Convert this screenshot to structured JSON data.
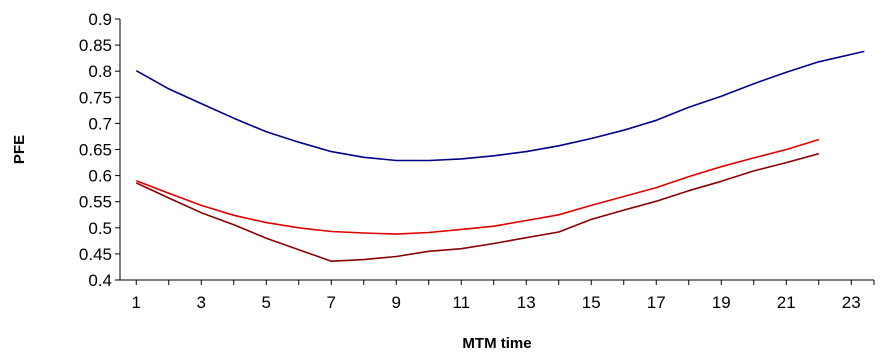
{
  "chart_data": {
    "type": "line",
    "title": "",
    "xlabel": "MTM time",
    "ylabel": "PFE",
    "x_ticks": [
      "1",
      "3",
      "5",
      "7",
      "9",
      "11",
      "13",
      "15",
      "17",
      "19",
      "21",
      "23"
    ],
    "y_ticks": [
      "0.4",
      "0.45",
      "0.5",
      "0.55",
      "0.6",
      "0.65",
      "0.7",
      "0.75",
      "0.8",
      "0.85",
      "0.9"
    ],
    "xlim": [
      0.5,
      23.7
    ],
    "ylim": [
      0.4,
      0.9
    ],
    "grid": false,
    "legend": "none",
    "series": [
      {
        "color": "#00008B",
        "x": [
          1,
          2,
          3,
          4,
          5,
          6,
          7,
          8,
          9,
          10,
          11,
          12,
          13,
          14,
          15,
          16,
          17,
          18,
          19,
          20,
          21,
          22,
          23.4
        ],
        "values": [
          0.801,
          0.766,
          0.738,
          0.71,
          0.684,
          0.664,
          0.646,
          0.635,
          0.629,
          0.629,
          0.632,
          0.638,
          0.646,
          0.657,
          0.671,
          0.687,
          0.706,
          0.731,
          0.752,
          0.776,
          0.798,
          0.818,
          0.838
        ]
      },
      {
        "color": "#E00000",
        "x": [
          1,
          2,
          3,
          4,
          5,
          6,
          7,
          8,
          9,
          10,
          11,
          12,
          13,
          14,
          15,
          16,
          17,
          18,
          19,
          20,
          21,
          22
        ],
        "values": [
          0.59,
          0.566,
          0.543,
          0.524,
          0.51,
          0.5,
          0.493,
          0.49,
          0.488,
          0.491,
          0.497,
          0.503,
          0.514,
          0.525,
          0.543,
          0.56,
          0.577,
          0.598,
          0.617,
          0.634,
          0.65,
          0.669
        ]
      },
      {
        "color": "#8B0000",
        "x": [
          1,
          2,
          3,
          4,
          5,
          6,
          7,
          8,
          9,
          10,
          11,
          12,
          13,
          14,
          15,
          16,
          17,
          18,
          19,
          20,
          21,
          22
        ],
        "values": [
          0.586,
          0.557,
          0.529,
          0.506,
          0.48,
          0.458,
          0.436,
          0.439,
          0.445,
          0.455,
          0.46,
          0.47,
          0.481,
          0.492,
          0.516,
          0.534,
          0.551,
          0.571,
          0.589,
          0.609,
          0.625,
          0.642
        ]
      }
    ]
  }
}
